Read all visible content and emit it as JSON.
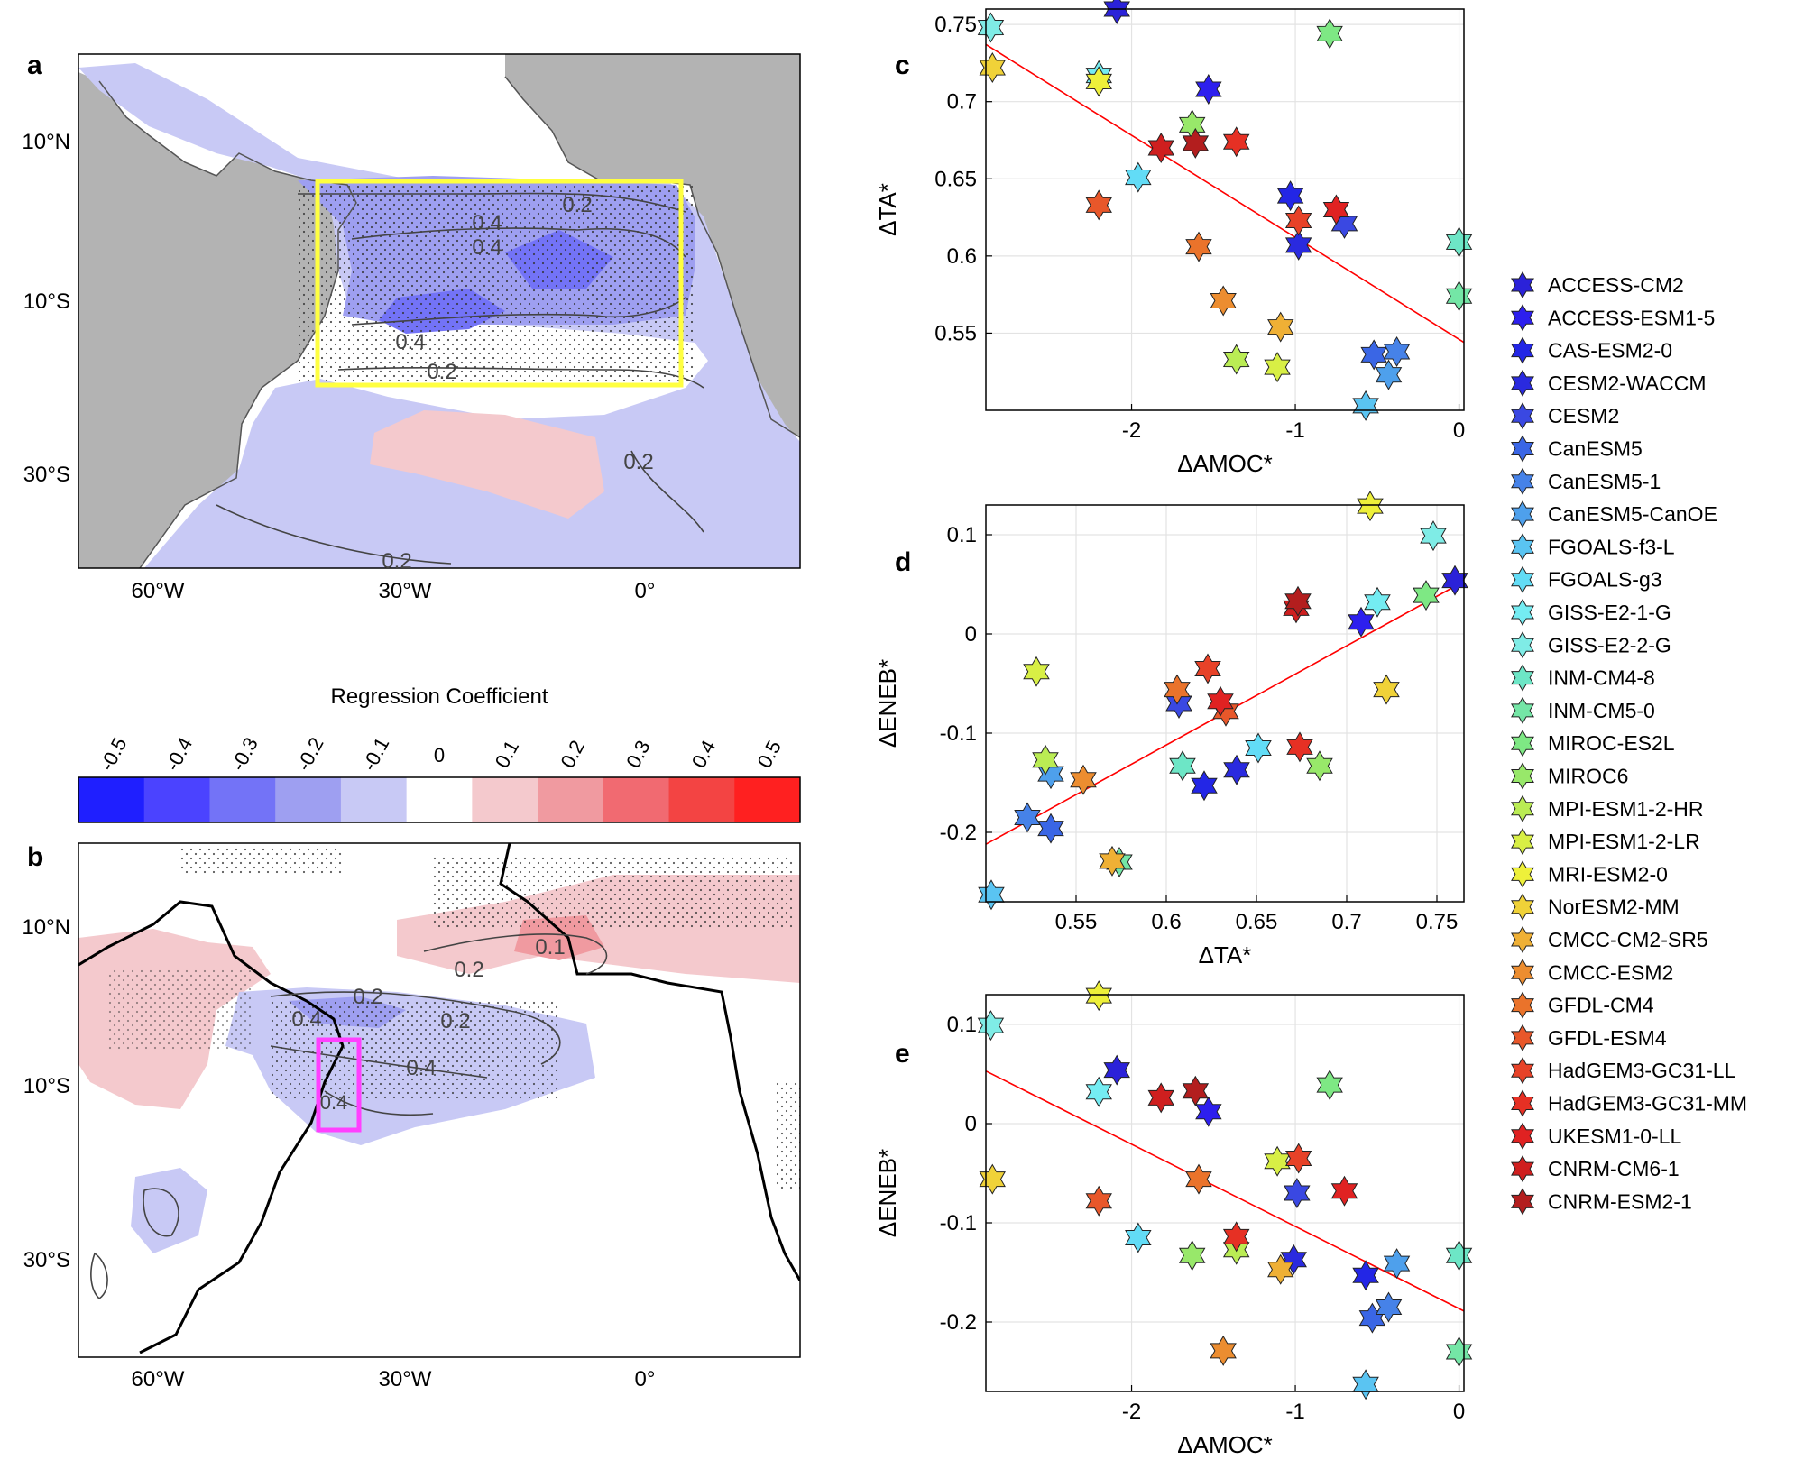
{
  "figure": {
    "panel_labels": {
      "a": "a",
      "b": "b",
      "c": "c",
      "d": "d",
      "e": "e"
    },
    "colorbar": {
      "title": "Regression Coefficient",
      "ticks": [
        "-0.5",
        "-0.4",
        "-0.3",
        "-0.2",
        "-0.1",
        "0",
        "0.1",
        "0.2",
        "0.3",
        "0.4",
        "0.5"
      ],
      "colors": [
        "#1f1fff",
        "#4b43ff",
        "#7373f7",
        "#9e9ff1",
        "#c8c9f5",
        "#ffffff",
        "#f4c9cd",
        "#f09aa0",
        "#f16a71",
        "#f34443",
        "#ff2020"
      ]
    },
    "map_a": {
      "lon_ticks": [
        "60°W",
        "30°W",
        "0°"
      ],
      "lat_ticks": [
        "10°N",
        "10°S",
        "30°S"
      ],
      "contour_labels": [
        "0.2",
        "0.4",
        "0.4",
        "0.4",
        "0.2",
        "0.2",
        "0.2"
      ],
      "box_color": "#ffff40"
    },
    "map_b": {
      "lon_ticks": [
        "60°W",
        "30°W",
        "0°"
      ],
      "lat_ticks": [
        "10°N",
        "10°S",
        "30°S"
      ],
      "contour_labels": [
        "0.2",
        "0.2",
        "0.1",
        "0.4",
        "0.2",
        "0.4",
        "0.4"
      ],
      "box_color": "#ff40ff"
    },
    "colors": {
      "land": "#b3b3b3",
      "coast": "#000000",
      "fit_line": "#ff0000",
      "grid": "#e3e3e3"
    },
    "models": [
      {
        "name": "ACCESS-CM2",
        "color": "#2b22d9"
      },
      {
        "name": "ACCESS-ESM1-5",
        "color": "#2d1fee"
      },
      {
        "name": "CAS-ESM2-0",
        "color": "#2326e6"
      },
      {
        "name": "CESM2-WACCM",
        "color": "#2a2adf"
      },
      {
        "name": "CESM2",
        "color": "#3a48e2"
      },
      {
        "name": "CanESM5",
        "color": "#3a66e5"
      },
      {
        "name": "CanESM5-1",
        "color": "#4682e8"
      },
      {
        "name": "CanESM5-CanOE",
        "color": "#4ea0ec"
      },
      {
        "name": "FGOALS-f3-L",
        "color": "#5ac4f2"
      },
      {
        "name": "FGOALS-g3",
        "color": "#62dcf6"
      },
      {
        "name": "GISS-E2-1-G",
        "color": "#74ecf2"
      },
      {
        "name": "GISS-E2-2-G",
        "color": "#7fece6"
      },
      {
        "name": "INM-CM4-8",
        "color": "#6de6c6"
      },
      {
        "name": "INM-CM5-0",
        "color": "#74e6a6"
      },
      {
        "name": "MIROC-ES2L",
        "color": "#7ee884"
      },
      {
        "name": "MIROC6",
        "color": "#98e86a"
      },
      {
        "name": "MPI-ESM1-2-HR",
        "color": "#baec54"
      },
      {
        "name": "MPI-ESM1-2-LR",
        "color": "#d8ef45"
      },
      {
        "name": "MRI-ESM2-0",
        "color": "#eef03a"
      },
      {
        "name": "NorESM2-MM",
        "color": "#f0d238"
      },
      {
        "name": "CMCC-CM2-SR5",
        "color": "#efb035"
      },
      {
        "name": "CMCC-ESM2",
        "color": "#ec8d30"
      },
      {
        "name": "GFDL-CM4",
        "color": "#ea732b"
      },
      {
        "name": "GFDL-ESM4",
        "color": "#e8572a"
      },
      {
        "name": "HadGEM3-GC31-LL",
        "color": "#e74228"
      },
      {
        "name": "HadGEM3-GC31-MM",
        "color": "#e63024"
      },
      {
        "name": "UKESM1-0-LL",
        "color": "#e02222"
      },
      {
        "name": "CNRM-CM6-1",
        "color": "#cf1f1f"
      },
      {
        "name": "CNRM-ESM2-1",
        "color": "#b31e1e"
      }
    ]
  },
  "chart_data": [
    {
      "panel": "c",
      "type": "scatter",
      "xlabel": "ΔAMOC*",
      "ylabel": "ΔTA*",
      "xlim": [
        -2.89,
        0.03
      ],
      "ylim": [
        0.5,
        0.76
      ],
      "xticks": [
        {
          "v": -2,
          "label": "-2"
        },
        {
          "v": -1,
          "label": "-1"
        },
        {
          "v": 0,
          "label": "0"
        }
      ],
      "yticks": [
        {
          "v": 0.55,
          "label": "0.55"
        },
        {
          "v": 0.6,
          "label": "0.6"
        },
        {
          "v": 0.65,
          "label": "0.65"
        },
        {
          "v": 0.7,
          "label": "0.7"
        },
        {
          "v": 0.75,
          "label": "0.75"
        }
      ],
      "fit": {
        "x": [
          -2.89,
          0.03
        ],
        "y": [
          0.737,
          0.544
        ]
      },
      "points": [
        {
          "x": -2.09,
          "y": 0.76,
          "model": 0
        },
        {
          "x": -1.53,
          "y": 0.708,
          "model": 1
        },
        {
          "x": -1.03,
          "y": 0.639,
          "model": 2
        },
        {
          "x": -0.98,
          "y": 0.607,
          "model": 3
        },
        {
          "x": -0.7,
          "y": 0.621,
          "model": 4
        },
        {
          "x": -0.52,
          "y": 0.536,
          "model": 5
        },
        {
          "x": -0.38,
          "y": 0.538,
          "model": 6
        },
        {
          "x": -0.43,
          "y": 0.523,
          "model": 7
        },
        {
          "x": -0.57,
          "y": 0.503,
          "model": 8
        },
        {
          "x": -1.96,
          "y": 0.651,
          "model": 9
        },
        {
          "x": -2.2,
          "y": 0.717,
          "model": 10
        },
        {
          "x": -2.86,
          "y": 0.748,
          "model": 11
        },
        {
          "x": 0.0,
          "y": 0.609,
          "model": 12
        },
        {
          "x": 0.0,
          "y": 0.574,
          "model": 13
        },
        {
          "x": -0.79,
          "y": 0.744,
          "model": 14
        },
        {
          "x": -1.63,
          "y": 0.685,
          "model": 15
        },
        {
          "x": -1.36,
          "y": 0.533,
          "model": 16
        },
        {
          "x": -1.11,
          "y": 0.528,
          "model": 17
        },
        {
          "x": -2.2,
          "y": 0.713,
          "model": 18
        },
        {
          "x": -2.85,
          "y": 0.722,
          "model": 19
        },
        {
          "x": -1.09,
          "y": 0.554,
          "model": 20
        },
        {
          "x": -1.44,
          "y": 0.571,
          "model": 21
        },
        {
          "x": -1.59,
          "y": 0.606,
          "model": 22
        },
        {
          "x": -2.2,
          "y": 0.633,
          "model": 23
        },
        {
          "x": -0.98,
          "y": 0.623,
          "model": 24
        },
        {
          "x": -1.36,
          "y": 0.674,
          "model": 25
        },
        {
          "x": -0.75,
          "y": 0.63,
          "model": 26
        },
        {
          "x": -1.82,
          "y": 0.67,
          "model": 27
        },
        {
          "x": -1.61,
          "y": 0.673,
          "model": 28
        }
      ]
    },
    {
      "panel": "d",
      "type": "scatter",
      "xlabel": "ΔTA*",
      "ylabel": "ΔENEB*",
      "xlim": [
        0.5,
        0.765
      ],
      "ylim": [
        -0.27,
        0.13
      ],
      "xticks": [
        {
          "v": 0.55,
          "label": "0.55"
        },
        {
          "v": 0.6,
          "label": "0.6"
        },
        {
          "v": 0.65,
          "label": "0.65"
        },
        {
          "v": 0.7,
          "label": "0.7"
        },
        {
          "v": 0.75,
          "label": "0.75"
        }
      ],
      "yticks": [
        {
          "v": -0.2,
          "label": "-0.2"
        },
        {
          "v": -0.1,
          "label": "-0.1"
        },
        {
          "v": 0,
          "label": "0"
        },
        {
          "v": 0.1,
          "label": "0.1"
        }
      ],
      "fit": {
        "x": [
          0.5,
          0.762
        ],
        "y": [
          -0.212,
          0.05
        ]
      },
      "points": [
        {
          "x": 0.76,
          "y": 0.054,
          "model": 0
        },
        {
          "x": 0.708,
          "y": 0.012,
          "model": 1
        },
        {
          "x": 0.621,
          "y": -0.153,
          "model": 2
        },
        {
          "x": 0.639,
          "y": -0.137,
          "model": 3
        },
        {
          "x": 0.607,
          "y": -0.07,
          "model": 4
        },
        {
          "x": 0.536,
          "y": -0.196,
          "model": 5
        },
        {
          "x": 0.523,
          "y": -0.185,
          "model": 6
        },
        {
          "x": 0.536,
          "y": -0.141,
          "model": 7
        },
        {
          "x": 0.503,
          "y": -0.263,
          "model": 8
        },
        {
          "x": 0.651,
          "y": -0.115,
          "model": 9
        },
        {
          "x": 0.717,
          "y": 0.032,
          "model": 10
        },
        {
          "x": 0.748,
          "y": 0.099,
          "model": 11
        },
        {
          "x": 0.609,
          "y": -0.133,
          "model": 12
        },
        {
          "x": 0.574,
          "y": -0.23,
          "model": 13
        },
        {
          "x": 0.744,
          "y": 0.039,
          "model": 14
        },
        {
          "x": 0.685,
          "y": -0.133,
          "model": 15
        },
        {
          "x": 0.533,
          "y": -0.127,
          "model": 16
        },
        {
          "x": 0.528,
          "y": -0.038,
          "model": 17
        },
        {
          "x": 0.713,
          "y": 0.129,
          "model": 18
        },
        {
          "x": 0.722,
          "y": -0.056,
          "model": 19
        },
        {
          "x": 0.57,
          "y": -0.229,
          "model": 20
        },
        {
          "x": 0.554,
          "y": -0.147,
          "model": 21
        },
        {
          "x": 0.606,
          "y": -0.056,
          "model": 22
        },
        {
          "x": 0.633,
          "y": -0.078,
          "model": 23
        },
        {
          "x": 0.623,
          "y": -0.035,
          "model": 24
        },
        {
          "x": 0.674,
          "y": -0.114,
          "model": 25
        },
        {
          "x": 0.63,
          "y": -0.068,
          "model": 26
        },
        {
          "x": 0.672,
          "y": 0.026,
          "model": 27
        },
        {
          "x": 0.673,
          "y": 0.033,
          "model": 28
        }
      ]
    },
    {
      "panel": "e",
      "type": "scatter",
      "xlabel": "ΔAMOC*",
      "ylabel": "ΔENEB*",
      "xlim": [
        -2.89,
        0.03
      ],
      "ylim": [
        -0.27,
        0.13
      ],
      "xticks": [
        {
          "v": -2,
          "label": "-2"
        },
        {
          "v": -1,
          "label": "-1"
        },
        {
          "v": 0,
          "label": "0"
        }
      ],
      "yticks": [
        {
          "v": -0.2,
          "label": "-0.2"
        },
        {
          "v": -0.1,
          "label": "-0.1"
        },
        {
          "v": 0,
          "label": "0"
        },
        {
          "v": 0.1,
          "label": "0.1"
        }
      ],
      "fit": {
        "x": [
          -2.89,
          0.03
        ],
        "y": [
          0.053,
          -0.189
        ]
      },
      "points": [
        {
          "x": -2.09,
          "y": 0.054,
          "model": 0
        },
        {
          "x": -1.53,
          "y": 0.012,
          "model": 1
        },
        {
          "x": -0.57,
          "y": -0.153,
          "model": 2
        },
        {
          "x": -1.01,
          "y": -0.137,
          "model": 3
        },
        {
          "x": -0.99,
          "y": -0.07,
          "model": 4
        },
        {
          "x": -0.53,
          "y": -0.196,
          "model": 5
        },
        {
          "x": -0.43,
          "y": -0.185,
          "model": 6
        },
        {
          "x": -0.38,
          "y": -0.141,
          "model": 7
        },
        {
          "x": -0.57,
          "y": -0.263,
          "model": 8
        },
        {
          "x": -1.96,
          "y": -0.115,
          "model": 9
        },
        {
          "x": -2.2,
          "y": 0.032,
          "model": 10
        },
        {
          "x": -2.86,
          "y": 0.099,
          "model": 11
        },
        {
          "x": 0.0,
          "y": -0.133,
          "model": 12
        },
        {
          "x": 0.0,
          "y": -0.23,
          "model": 13
        },
        {
          "x": -0.79,
          "y": 0.039,
          "model": 14
        },
        {
          "x": -1.63,
          "y": -0.133,
          "model": 15
        },
        {
          "x": -1.36,
          "y": -0.127,
          "model": 16
        },
        {
          "x": -1.11,
          "y": -0.038,
          "model": 17
        },
        {
          "x": -2.2,
          "y": 0.129,
          "model": 18
        },
        {
          "x": -2.85,
          "y": -0.056,
          "model": 19
        },
        {
          "x": -1.09,
          "y": -0.147,
          "model": 20
        },
        {
          "x": -1.44,
          "y": -0.229,
          "model": 21
        },
        {
          "x": -1.59,
          "y": -0.056,
          "model": 22
        },
        {
          "x": -2.2,
          "y": -0.078,
          "model": 23
        },
        {
          "x": -0.98,
          "y": -0.035,
          "model": 24
        },
        {
          "x": -1.36,
          "y": -0.114,
          "model": 25
        },
        {
          "x": -0.7,
          "y": -0.068,
          "model": 26
        },
        {
          "x": -1.82,
          "y": 0.026,
          "model": 27
        },
        {
          "x": -1.61,
          "y": 0.033,
          "model": 28
        }
      ]
    }
  ]
}
